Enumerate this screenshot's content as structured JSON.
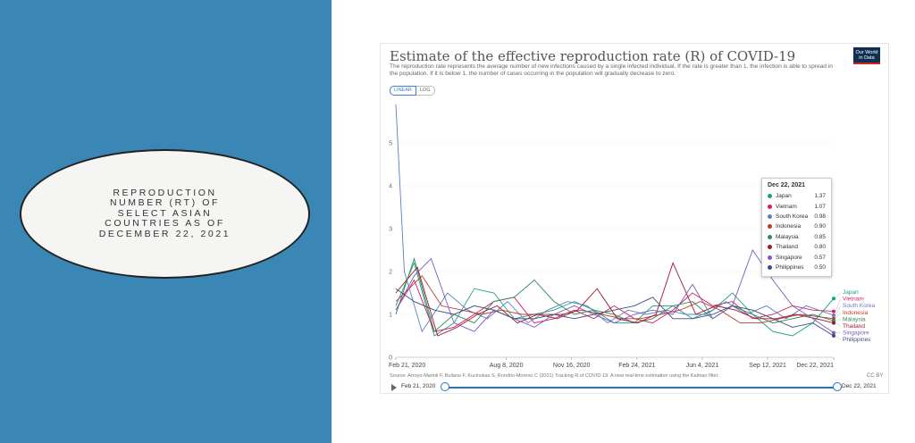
{
  "slide": {
    "heading": "REPRODUCTION NUMBER (RT) OF SELECT ASIAN COUNTRIES AS OF DECEMBER 22, 2021"
  },
  "chart_card": {
    "title": "Estimate of the effective reproduction rate (R) of COVID-19",
    "subtitle": "The reproduction rate represents the average number of new infections caused by a single infected individual. If the rate is greater than 1, the infection is able to spread in the population. If it is below 1, the number of cases occurring in the population will gradually decrease to zero.",
    "logo_line1": "Our World",
    "logo_line2": "in Data",
    "scale_linear": "LINEAR",
    "scale_log": "LOG",
    "source": "Source: Arroyo-Marioli F, Bullano F, Kucinskas S, Rondón-Moreno C (2021) Tracking R of COVID-19: A new real-time estimation using the Kalman filter.",
    "license": "CC BY",
    "timeline_start": "Feb 21, 2020",
    "timeline_end": "Dec 22, 2021"
  },
  "colors": {
    "Japan": "#18a085",
    "Vietnam": "#d81b60",
    "South Korea": "#5a7fbf",
    "Indonesia": "#c0392b",
    "Malaysia": "#2e8b57",
    "Thailand": "#a0172e",
    "Singapore": "#7e57c2",
    "Philippines": "#3b4f7a"
  },
  "chart_data": {
    "type": "line",
    "title": "Estimate of the effective reproduction rate (R) of COVID-19",
    "xlabel": "",
    "ylabel": "",
    "x_range": [
      "2020-02-21",
      "2021-12-22"
    ],
    "ylim": [
      0,
      6
    ],
    "y_ticks": [
      0,
      1,
      2,
      3,
      4,
      5
    ],
    "x_ticks": [
      "Feb 21, 2020",
      "Aug 8, 2020",
      "Nov 16, 2020",
      "Feb 24, 2021",
      "Jun 4, 2021",
      "Sep 12, 2021",
      "Dec 22, 2021"
    ],
    "x_tick_dates": [
      "2020-02-21",
      "2020-08-08",
      "2020-11-16",
      "2021-02-24",
      "2021-06-04",
      "2021-09-12",
      "2021-12-22"
    ],
    "grid": true,
    "legend": "right",
    "tooltip_date": "Dec 22, 2021",
    "series": [
      {
        "name": "Japan",
        "values": [
          [
            "2020-02-21",
            1.2
          ],
          [
            "2020-03-20",
            2.2
          ],
          [
            "2020-04-20",
            0.5
          ],
          [
            "2020-05-20",
            0.8
          ],
          [
            "2020-06-20",
            1.6
          ],
          [
            "2020-07-20",
            1.5
          ],
          [
            "2020-08-20",
            0.9
          ],
          [
            "2020-09-20",
            1.0
          ],
          [
            "2020-10-20",
            1.1
          ],
          [
            "2020-11-20",
            1.3
          ],
          [
            "2020-12-20",
            1.1
          ],
          [
            "2021-01-20",
            0.8
          ],
          [
            "2021-02-20",
            0.8
          ],
          [
            "2021-03-20",
            1.2
          ],
          [
            "2021-04-20",
            1.2
          ],
          [
            "2021-05-20",
            0.9
          ],
          [
            "2021-06-20",
            1.1
          ],
          [
            "2021-07-20",
            1.5
          ],
          [
            "2021-08-20",
            1.0
          ],
          [
            "2021-09-20",
            0.6
          ],
          [
            "2021-10-20",
            0.5
          ],
          [
            "2021-11-20",
            0.8
          ],
          [
            "2021-12-22",
            1.37
          ]
        ]
      },
      {
        "name": "Vietnam",
        "values": [
          [
            "2020-02-21",
            1.1
          ],
          [
            "2020-03-20",
            1.8
          ],
          [
            "2020-04-20",
            0.6
          ],
          [
            "2020-05-20",
            0.7
          ],
          [
            "2020-06-20",
            1.0
          ],
          [
            "2020-07-20",
            1.3
          ],
          [
            "2020-08-20",
            1.4
          ],
          [
            "2020-09-20",
            0.8
          ],
          [
            "2020-10-20",
            0.9
          ],
          [
            "2020-11-20",
            1.1
          ],
          [
            "2020-12-20",
            0.9
          ],
          [
            "2021-01-20",
            1.2
          ],
          [
            "2021-02-20",
            0.9
          ],
          [
            "2021-03-20",
            0.8
          ],
          [
            "2021-04-20",
            1.1
          ],
          [
            "2021-05-20",
            1.5
          ],
          [
            "2021-06-20",
            1.2
          ],
          [
            "2021-07-20",
            1.3
          ],
          [
            "2021-08-20",
            0.9
          ],
          [
            "2021-09-20",
            1.0
          ],
          [
            "2021-10-20",
            1.2
          ],
          [
            "2021-11-20",
            1.1
          ],
          [
            "2021-12-22",
            1.07
          ]
        ]
      },
      {
        "name": "South Korea",
        "values": [
          [
            "2020-02-21",
            5.9
          ],
          [
            "2020-03-05",
            2.0
          ],
          [
            "2020-04-01",
            0.6
          ],
          [
            "2020-05-10",
            1.5
          ],
          [
            "2020-06-10",
            1.1
          ],
          [
            "2020-07-10",
            0.9
          ],
          [
            "2020-08-10",
            1.3
          ],
          [
            "2020-09-10",
            0.8
          ],
          [
            "2020-10-10",
            1.1
          ],
          [
            "2020-11-10",
            1.3
          ],
          [
            "2020-12-10",
            1.2
          ],
          [
            "2021-01-10",
            0.8
          ],
          [
            "2021-02-10",
            1.1
          ],
          [
            "2021-03-10",
            1.0
          ],
          [
            "2021-04-10",
            1.1
          ],
          [
            "2021-05-10",
            1.0
          ],
          [
            "2021-06-10",
            1.0
          ],
          [
            "2021-07-10",
            1.3
          ],
          [
            "2021-08-10",
            1.0
          ],
          [
            "2021-09-10",
            1.2
          ],
          [
            "2021-10-10",
            0.9
          ],
          [
            "2021-11-10",
            1.2
          ],
          [
            "2021-12-22",
            0.98
          ]
        ]
      },
      {
        "name": "Indonesia",
        "values": [
          [
            "2020-02-21",
            1.3
          ],
          [
            "2020-04-01",
            1.9
          ],
          [
            "2020-05-01",
            1.2
          ],
          [
            "2020-06-01",
            1.1
          ],
          [
            "2020-07-01",
            1.0
          ],
          [
            "2020-08-01",
            1.1
          ],
          [
            "2020-09-01",
            1.0
          ],
          [
            "2020-10-01",
            1.0
          ],
          [
            "2020-11-01",
            1.0
          ],
          [
            "2020-12-01",
            1.1
          ],
          [
            "2021-01-01",
            1.0
          ],
          [
            "2021-02-01",
            0.9
          ],
          [
            "2021-03-01",
            0.9
          ],
          [
            "2021-04-01",
            1.0
          ],
          [
            "2021-05-01",
            1.1
          ],
          [
            "2021-06-01",
            1.3
          ],
          [
            "2021-07-01",
            1.1
          ],
          [
            "2021-08-01",
            0.8
          ],
          [
            "2021-09-01",
            0.8
          ],
          [
            "2021-10-01",
            0.9
          ],
          [
            "2021-11-01",
            1.0
          ],
          [
            "2021-12-22",
            0.9
          ]
        ]
      },
      {
        "name": "Malaysia",
        "values": [
          [
            "2020-02-21",
            1.0
          ],
          [
            "2020-03-20",
            2.3
          ],
          [
            "2020-04-20",
            0.6
          ],
          [
            "2020-05-20",
            1.0
          ],
          [
            "2020-06-20",
            0.8
          ],
          [
            "2020-07-20",
            1.3
          ],
          [
            "2020-08-20",
            1.4
          ],
          [
            "2020-09-20",
            1.8
          ],
          [
            "2020-10-20",
            1.3
          ],
          [
            "2020-11-20",
            1.0
          ],
          [
            "2020-12-20",
            1.1
          ],
          [
            "2021-01-20",
            1.0
          ],
          [
            "2021-02-20",
            0.8
          ],
          [
            "2021-03-20",
            0.9
          ],
          [
            "2021-04-20",
            1.2
          ],
          [
            "2021-05-20",
            1.3
          ],
          [
            "2021-06-20",
            0.9
          ],
          [
            "2021-07-20",
            1.2
          ],
          [
            "2021-08-20",
            1.0
          ],
          [
            "2021-09-20",
            0.8
          ],
          [
            "2021-10-20",
            0.9
          ],
          [
            "2021-11-20",
            1.0
          ],
          [
            "2021-12-22",
            0.85
          ]
        ]
      },
      {
        "name": "Thailand",
        "values": [
          [
            "2020-02-21",
            1.5
          ],
          [
            "2020-03-25",
            2.1
          ],
          [
            "2020-04-25",
            0.5
          ],
          [
            "2020-05-25",
            0.7
          ],
          [
            "2020-06-25",
            1.0
          ],
          [
            "2020-07-25",
            1.2
          ],
          [
            "2020-08-25",
            0.8
          ],
          [
            "2020-09-25",
            1.0
          ],
          [
            "2020-10-25",
            0.9
          ],
          [
            "2020-11-25",
            1.1
          ],
          [
            "2020-12-25",
            1.6
          ],
          [
            "2021-01-25",
            0.9
          ],
          [
            "2021-02-25",
            0.8
          ],
          [
            "2021-03-25",
            1.0
          ],
          [
            "2021-04-20",
            2.2
          ],
          [
            "2021-05-25",
            1.0
          ],
          [
            "2021-06-25",
            1.2
          ],
          [
            "2021-07-25",
            1.1
          ],
          [
            "2021-08-25",
            0.9
          ],
          [
            "2021-09-25",
            0.9
          ],
          [
            "2021-10-25",
            1.0
          ],
          [
            "2021-11-25",
            0.9
          ],
          [
            "2021-12-22",
            0.8
          ]
        ]
      },
      {
        "name": "Singapore",
        "values": [
          [
            "2020-02-21",
            1.1
          ],
          [
            "2020-03-20",
            1.9
          ],
          [
            "2020-04-15",
            2.3
          ],
          [
            "2020-05-20",
            0.8
          ],
          [
            "2020-06-20",
            0.6
          ],
          [
            "2020-07-20",
            1.1
          ],
          [
            "2020-08-20",
            0.9
          ],
          [
            "2020-09-20",
            0.7
          ],
          [
            "2020-10-20",
            1.0
          ],
          [
            "2020-11-20",
            1.2
          ],
          [
            "2020-12-20",
            1.0
          ],
          [
            "2021-01-20",
            0.8
          ],
          [
            "2021-02-20",
            1.0
          ],
          [
            "2021-03-20",
            1.1
          ],
          [
            "2021-04-20",
            1.0
          ],
          [
            "2021-05-20",
            1.7
          ],
          [
            "2021-06-20",
            0.9
          ],
          [
            "2021-07-20",
            1.2
          ],
          [
            "2021-08-20",
            2.5
          ],
          [
            "2021-09-20",
            1.8
          ],
          [
            "2021-10-20",
            1.2
          ],
          [
            "2021-11-20",
            0.9
          ],
          [
            "2021-12-22",
            0.57
          ]
        ]
      },
      {
        "name": "Philippines",
        "values": [
          [
            "2020-02-21",
            1.6
          ],
          [
            "2020-03-20",
            1.3
          ],
          [
            "2020-04-20",
            1.1
          ],
          [
            "2020-05-20",
            1.0
          ],
          [
            "2020-06-20",
            1.2
          ],
          [
            "2020-07-20",
            1.1
          ],
          [
            "2020-08-20",
            0.9
          ],
          [
            "2020-09-20",
            0.9
          ],
          [
            "2020-10-20",
            1.0
          ],
          [
            "2020-11-20",
            0.9
          ],
          [
            "2020-12-20",
            1.0
          ],
          [
            "2021-01-20",
            1.1
          ],
          [
            "2021-02-20",
            1.2
          ],
          [
            "2021-03-20",
            1.4
          ],
          [
            "2021-04-20",
            0.9
          ],
          [
            "2021-05-20",
            0.9
          ],
          [
            "2021-06-20",
            1.0
          ],
          [
            "2021-07-20",
            1.2
          ],
          [
            "2021-08-20",
            1.1
          ],
          [
            "2021-09-20",
            0.9
          ],
          [
            "2021-10-20",
            0.7
          ],
          [
            "2021-11-20",
            0.8
          ],
          [
            "2021-12-22",
            0.5
          ]
        ]
      }
    ]
  },
  "tooltip": {
    "date": "Dec 22, 2021",
    "rows": [
      {
        "name": "Japan",
        "value": "1.37"
      },
      {
        "name": "Vietnam",
        "value": "1.07"
      },
      {
        "name": "South Korea",
        "value": "0.98"
      },
      {
        "name": "Indonesia",
        "value": "0.90"
      },
      {
        "name": "Malaysia",
        "value": "0.85"
      },
      {
        "name": "Thailand",
        "value": "0.80"
      },
      {
        "name": "Singapore",
        "value": "0.57"
      },
      {
        "name": "Philippines",
        "value": "0.50"
      }
    ]
  }
}
